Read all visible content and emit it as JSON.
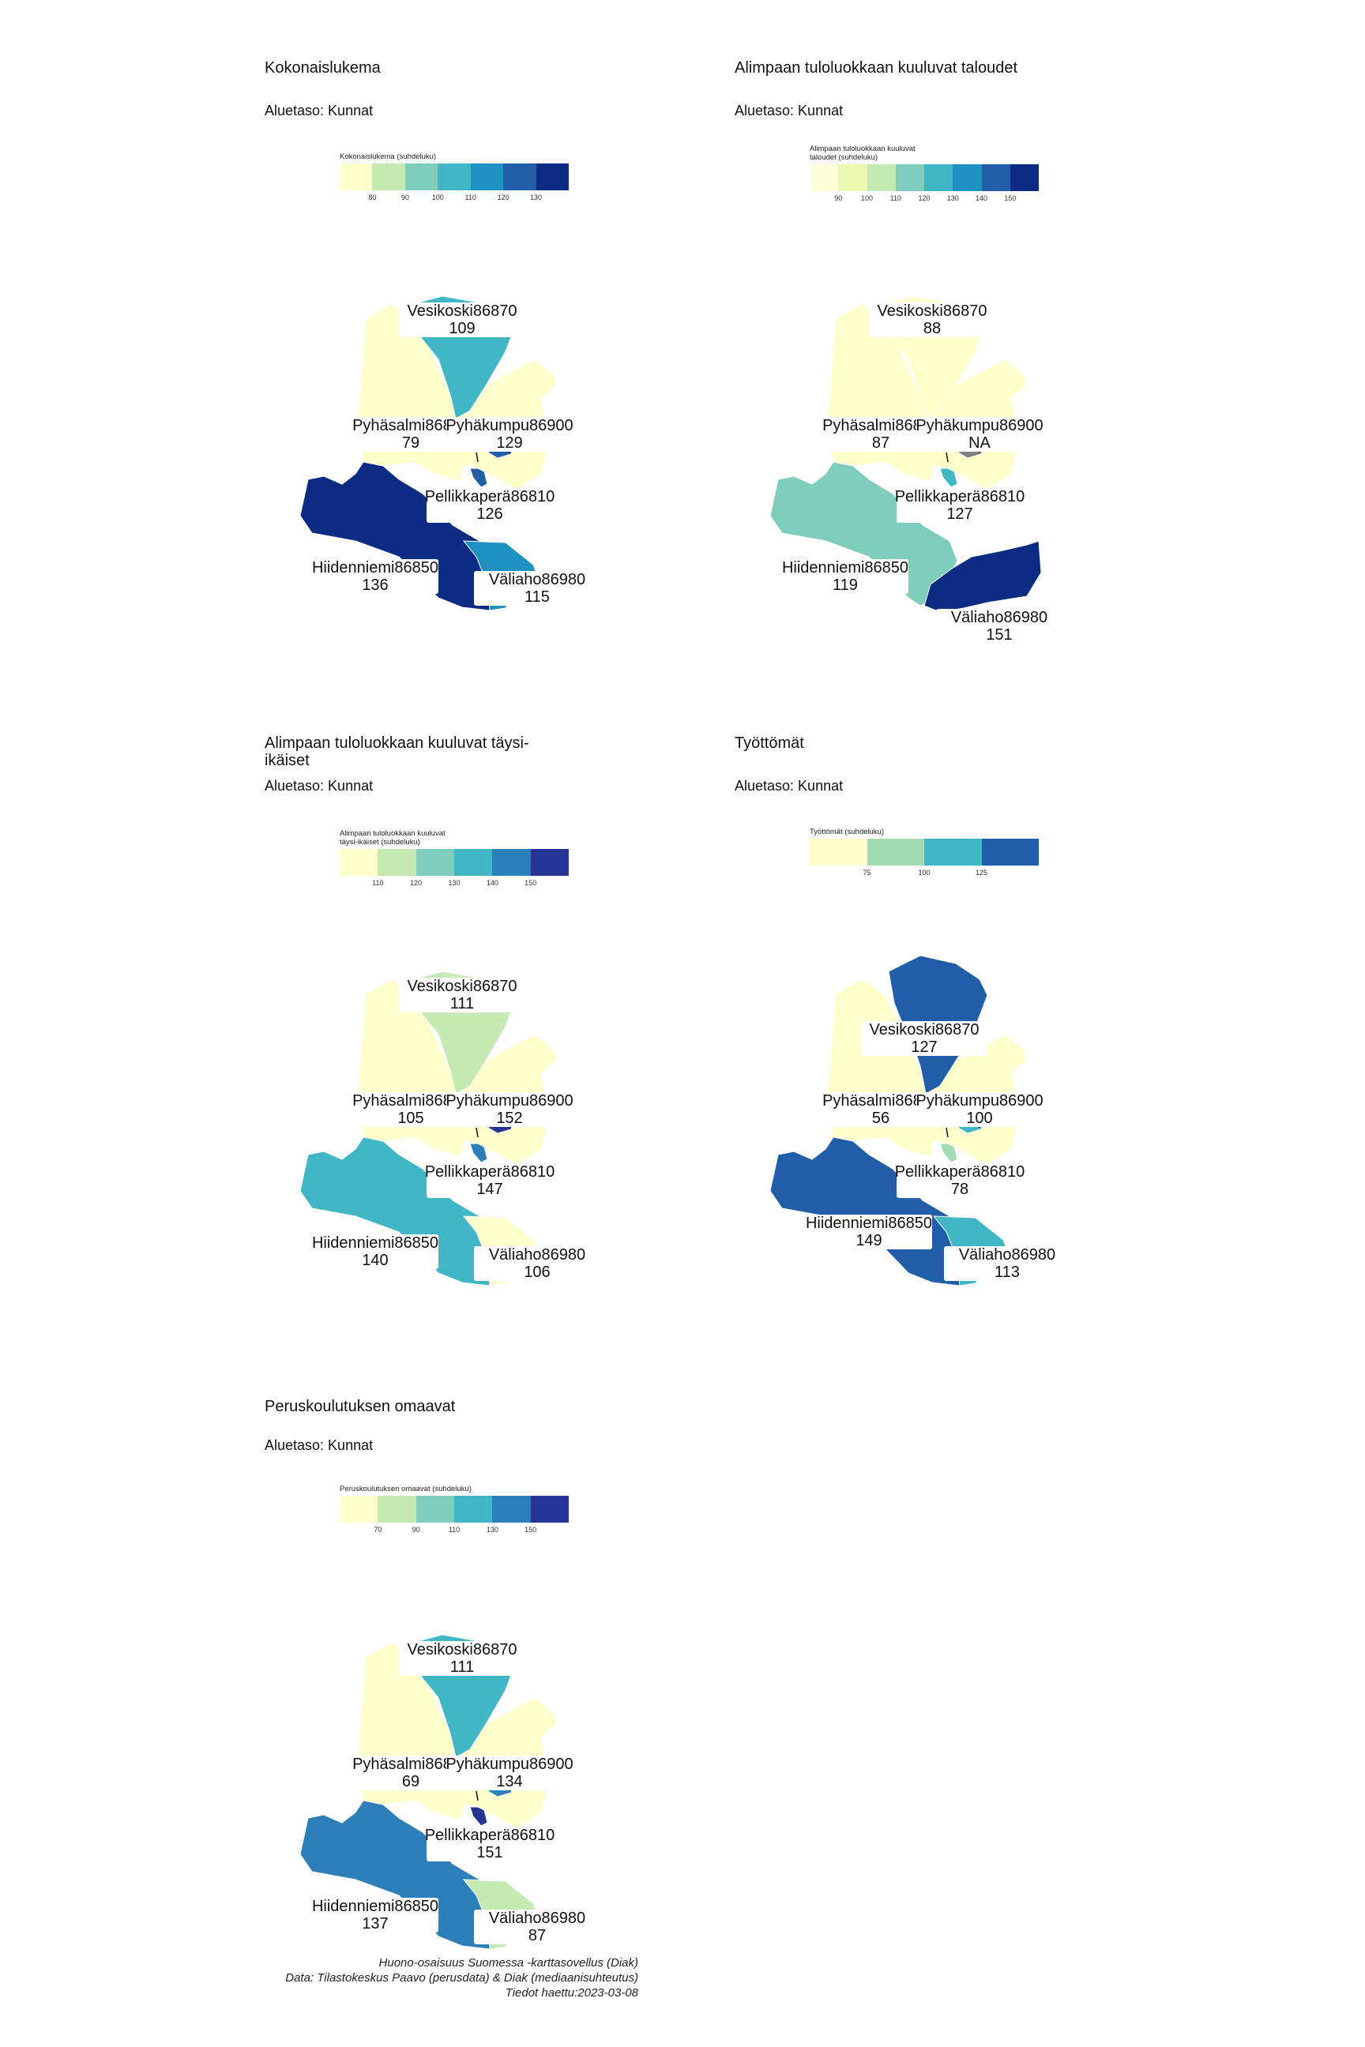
{
  "panels": [
    {
      "title": "Kokonaislukema",
      "subtitle": "Aluetaso: Kunnat",
      "legend_title": "Kokonaislukema (suhdeluku)",
      "legend_colors": [
        "#ffffcc",
        "#c7e9b4",
        "#7fcdbb",
        "#41b6c4",
        "#1d91c0",
        "#225ea8",
        "#0c2c84"
      ],
      "legend_ticks": [
        "80",
        "90",
        "100",
        "110",
        "120",
        "130"
      ],
      "regions": {
        "vesikoski": {
          "name": "Vesikoski86870",
          "value": "109",
          "color": "#41b6c4"
        },
        "pyhasalmi": {
          "name": "Pyhäsalmi86800",
          "value": "79",
          "color": "#ffffcc"
        },
        "pyhakumpu": {
          "name": "Pyhäkumpu86900",
          "value": "129",
          "color": "#225ea8"
        },
        "pellikkapera": {
          "name": "Pellikkaperä86810",
          "value": "126",
          "color": "#225ea8"
        },
        "hiidenniemi": {
          "name": "Hiidenniemi86850",
          "value": "136",
          "color": "#0c2c84"
        },
        "valiaho": {
          "name": "Väliaho86980",
          "value": "115",
          "color": "#1d91c0"
        }
      }
    },
    {
      "title": "Alimpaan tuloluokkaan kuuluvat taloudet",
      "subtitle": "Aluetaso: Kunnat",
      "legend_title": "Alimpaan tuloluokkaan kuuluvat\ntaloudet (suhdeluku)",
      "legend_colors": [
        "#ffffd9",
        "#edf8b1",
        "#c7e9b4",
        "#7fcdbb",
        "#41b6c4",
        "#1d91c0",
        "#225ea8",
        "#0c2c84"
      ],
      "legend_ticks": [
        "90",
        "100",
        "110",
        "120",
        "130",
        "140",
        "150"
      ],
      "regions": {
        "vesikoski": {
          "name": "Vesikoski86870",
          "value": "88",
          "color": "#ffffcc"
        },
        "pyhasalmi": {
          "name": "Pyhäsalmi86800",
          "value": "87",
          "color": "#ffffcc"
        },
        "pyhakumpu": {
          "name": "Pyhäkumpu86900",
          "value": "NA",
          "color": "#7f7f7f"
        },
        "pellikkapera": {
          "name": "Pellikkaperä86810",
          "value": "127",
          "color": "#41b6c4"
        },
        "hiidenniemi": {
          "name": "Hiidenniemi86850",
          "value": "119",
          "color": "#7fcdbb"
        },
        "valiaho": {
          "name": "Väliaho86980",
          "value": "151",
          "color": "#0c2c84"
        }
      }
    },
    {
      "title": "Alimpaan tuloluokkaan kuuluvat täysi-ikäiset",
      "subtitle": "Aluetaso: Kunnat",
      "legend_title": "Alimpaan tuloluokkaan kuuluvat\ntäysi-ikäiset (suhdeluku)",
      "legend_colors": [
        "#ffffcc",
        "#c7e9b4",
        "#7fcdbb",
        "#41b6c4",
        "#2c7fb8",
        "#253494"
      ],
      "legend_ticks": [
        "110",
        "120",
        "130",
        "140",
        "150"
      ],
      "regions": {
        "vesikoski": {
          "name": "Vesikoski86870",
          "value": "111",
          "color": "#c7e9b4"
        },
        "pyhasalmi": {
          "name": "Pyhäsalmi86800",
          "value": "105",
          "color": "#ffffcc"
        },
        "pyhakumpu": {
          "name": "Pyhäkumpu86900",
          "value": "152",
          "color": "#253494"
        },
        "pellikkapera": {
          "name": "Pellikkaperä86810",
          "value": "147",
          "color": "#2c7fb8"
        },
        "hiidenniemi": {
          "name": "Hiidenniemi86850",
          "value": "140",
          "color": "#41b6c4"
        },
        "valiaho": {
          "name": "Väliaho86980",
          "value": "106",
          "color": "#ffffcc"
        }
      }
    },
    {
      "title": "Työttömät",
      "subtitle": "Aluetaso: Kunnat",
      "legend_title": "Työttömät (suhdeluku)",
      "legend_colors": [
        "#ffffcc",
        "#a1dab4",
        "#41b6c4",
        "#225ea8"
      ],
      "legend_ticks": [
        "75",
        "100",
        "125"
      ],
      "regions": {
        "vesikoski": {
          "name": "Vesikoski86870",
          "value": "127",
          "color": "#225ea8"
        },
        "pyhasalmi": {
          "name": "Pyhäsalmi86800",
          "value": "56",
          "color": "#ffffcc"
        },
        "pyhakumpu": {
          "name": "Pyhäkumpu86900",
          "value": "100",
          "color": "#41b6c4"
        },
        "pellikkapera": {
          "name": "Pellikkaperä86810",
          "value": "78",
          "color": "#a1dab4"
        },
        "hiidenniemi": {
          "name": "Hiidenniemi86850",
          "value": "149",
          "color": "#225ea8"
        },
        "valiaho": {
          "name": "Väliaho86980",
          "value": "113",
          "color": "#41b6c4"
        }
      }
    },
    {
      "title": "Peruskoulutuksen omaavat",
      "subtitle": "Aluetaso: Kunnat",
      "legend_title": "Peruskoulutuksen omaavat (suhdeluku)",
      "legend_colors": [
        "#ffffcc",
        "#c7e9b4",
        "#7fcdbb",
        "#41b6c4",
        "#2c7fb8",
        "#253494"
      ],
      "legend_ticks": [
        "70",
        "90",
        "110",
        "130",
        "150"
      ],
      "regions": {
        "vesikoski": {
          "name": "Vesikoski86870",
          "value": "111",
          "color": "#41b6c4"
        },
        "pyhasalmi": {
          "name": "Pyhäsalmi86800",
          "value": "69",
          "color": "#ffffcc"
        },
        "pyhakumpu": {
          "name": "Pyhäkumpu86900",
          "value": "134",
          "color": "#2c7fb8"
        },
        "pellikkapera": {
          "name": "Pellikkaperä86810",
          "value": "151",
          "color": "#253494"
        },
        "hiidenniemi": {
          "name": "Hiidenniemi86850",
          "value": "137",
          "color": "#2c7fb8"
        },
        "valiaho": {
          "name": "Väliaho86980",
          "value": "87",
          "color": "#c7e9b4"
        }
      }
    }
  ],
  "caption": {
    "line1": "Huono-osaisuus Suomessa -karttasovellus (Diak)",
    "line2": "Data: Tilastokeskus Paavo (perusdata) & Diak (mediaanisuhteutus)",
    "line3": "Tiedot haettu:2023-03-08"
  }
}
